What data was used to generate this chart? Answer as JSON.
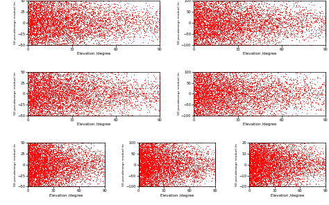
{
  "plots": [
    {
      "ylim": [
        -50,
        50
      ],
      "yticks": [
        -50,
        -25,
        0,
        25,
        50
      ],
      "ylabel": "SD pseudorange residual /m"
    },
    {
      "ylim": [
        -100,
        100
      ],
      "yticks": [
        -100,
        -50,
        0,
        50,
        100
      ],
      "ylabel": "SD pseudorange residual /m"
    },
    {
      "ylim": [
        -50,
        50
      ],
      "yticks": [
        -50,
        -25,
        0,
        25,
        50
      ],
      "ylabel": "SD pseudorange residual /m"
    },
    {
      "ylim": [
        -100,
        100
      ],
      "yticks": [
        -100,
        -50,
        0,
        50,
        100
      ],
      "ylabel": "SD pseudorange residual /m"
    },
    {
      "ylim": [
        -50,
        50
      ],
      "yticks": [
        -50,
        -25,
        0,
        25,
        50
      ],
      "ylabel": "SD pseudorange residual /m"
    },
    {
      "ylim": [
        -100,
        100
      ],
      "yticks": [
        -100,
        -50,
        0,
        50,
        100
      ],
      "ylabel": "SD pseudorange residual /m"
    },
    {
      "ylim": [
        -20,
        20
      ],
      "yticks": [
        -20,
        -10,
        0,
        10,
        20
      ],
      "ylabel": "SD pseudorange residual /m"
    }
  ],
  "xlim": [
    0,
    90
  ],
  "xticks": [
    0,
    30,
    60,
    90
  ],
  "xlabel": "Elevation /degree",
  "dot_color": "#FF0000",
  "dot_size": 0.4,
  "dot_alpha": 1.0,
  "n_points": 8000,
  "seeds": [
    42,
    43,
    44,
    45,
    46,
    47,
    48
  ]
}
